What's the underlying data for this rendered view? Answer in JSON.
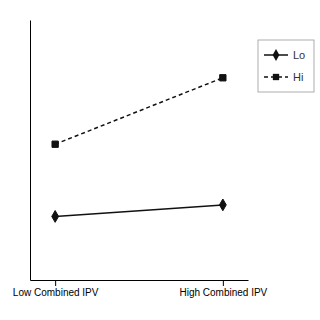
{
  "chart_data": {
    "type": "line",
    "x": [
      0,
      1
    ],
    "xlim": [
      -0.15,
      1.15
    ],
    "xticks": [
      {
        "value": 0,
        "label": "Low Combined IPV"
      },
      {
        "value": 1,
        "label": "High Combined IPV"
      }
    ],
    "ylim": [
      0.0,
      0.9
    ],
    "yticks": [],
    "tick_labels": "x",
    "grid": false,
    "legend": "right",
    "series": [
      {
        "name": "Lo",
        "color": "#111111",
        "marker": "diamond",
        "line_style": "solid",
        "values": [
          0.22,
          0.26
        ]
      },
      {
        "name": "Hi",
        "color": "#111111",
        "marker": "square",
        "line_style": "dashed",
        "values": [
          0.47,
          0.7
        ]
      }
    ]
  }
}
